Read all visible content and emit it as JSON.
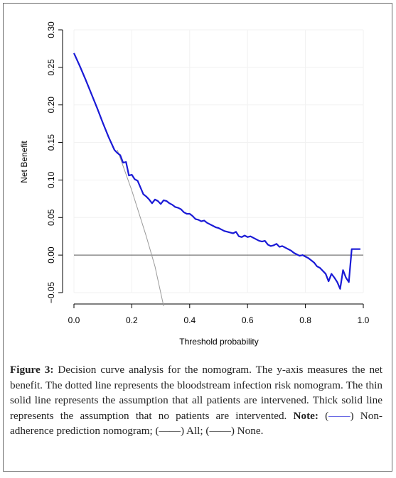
{
  "chart_data": {
    "type": "line",
    "xlabel": "Threshold probability",
    "ylabel": "Net Benefit",
    "xlim": [
      0.0,
      1.0
    ],
    "ylim": [
      -0.05,
      0.3
    ],
    "x_ticks": [
      "0.0",
      "0.2",
      "0.4",
      "0.6",
      "0.8",
      "1.0"
    ],
    "y_ticks": [
      "−0.05",
      "0.00",
      "0.05",
      "0.10",
      "0.15",
      "0.20",
      "0.25",
      "0.30"
    ],
    "grid": true,
    "series": [
      {
        "name": "Non-adherence prediction nomogram",
        "color": "#1a1ad6",
        "style": "thick",
        "x": [
          0.0,
          0.02,
          0.04,
          0.06,
          0.08,
          0.1,
          0.12,
          0.14,
          0.15,
          0.16,
          0.17,
          0.18,
          0.19,
          0.2,
          0.21,
          0.22,
          0.23,
          0.24,
          0.25,
          0.26,
          0.27,
          0.28,
          0.29,
          0.3,
          0.31,
          0.32,
          0.33,
          0.34,
          0.35,
          0.36,
          0.37,
          0.38,
          0.39,
          0.4,
          0.41,
          0.42,
          0.43,
          0.44,
          0.45,
          0.46,
          0.47,
          0.48,
          0.49,
          0.5,
          0.51,
          0.52,
          0.53,
          0.54,
          0.55,
          0.56,
          0.57,
          0.58,
          0.59,
          0.6,
          0.61,
          0.62,
          0.63,
          0.64,
          0.65,
          0.66,
          0.67,
          0.68,
          0.69,
          0.7,
          0.71,
          0.72,
          0.73,
          0.74,
          0.75,
          0.76,
          0.77,
          0.78,
          0.79,
          0.8,
          0.81,
          0.82,
          0.83,
          0.84,
          0.85,
          0.86,
          0.87,
          0.88,
          0.89,
          0.9,
          0.91,
          0.92,
          0.93,
          0.94,
          0.95,
          0.96,
          0.97,
          0.98,
          0.99
        ],
        "y": [
          0.269,
          0.252,
          0.234,
          0.215,
          0.196,
          0.176,
          0.157,
          0.14,
          0.136,
          0.133,
          0.123,
          0.124,
          0.106,
          0.107,
          0.101,
          0.099,
          0.09,
          0.081,
          0.078,
          0.074,
          0.069,
          0.074,
          0.072,
          0.068,
          0.073,
          0.072,
          0.069,
          0.067,
          0.064,
          0.063,
          0.061,
          0.057,
          0.055,
          0.055,
          0.052,
          0.048,
          0.047,
          0.045,
          0.046,
          0.043,
          0.041,
          0.039,
          0.037,
          0.036,
          0.034,
          0.032,
          0.031,
          0.03,
          0.029,
          0.031,
          0.025,
          0.024,
          0.026,
          0.024,
          0.025,
          0.023,
          0.021,
          0.019,
          0.018,
          0.019,
          0.014,
          0.012,
          0.013,
          0.015,
          0.011,
          0.012,
          0.01,
          0.008,
          0.006,
          0.003,
          0.001,
          -0.001,
          0.0,
          -0.002,
          -0.004,
          -0.007,
          -0.01,
          -0.015,
          -0.017,
          -0.021,
          -0.025,
          -0.035,
          -0.025,
          -0.03,
          -0.036,
          -0.045,
          -0.02,
          -0.03,
          -0.036,
          0.008,
          0.008,
          0.008,
          0.008
        ]
      },
      {
        "name": "All",
        "color": "#9a9a9a",
        "style": "thin",
        "x": [
          0.15,
          0.2,
          0.25,
          0.28,
          0.31
        ],
        "y": [
          0.14,
          0.086,
          0.025,
          -0.015,
          -0.068
        ]
      },
      {
        "name": "None",
        "color": "#555555",
        "style": "thin",
        "x": [
          0.0,
          1.0
        ],
        "y": [
          0.0,
          0.0
        ]
      }
    ]
  },
  "caption": {
    "figure_label": "Figure 3:",
    "text_1": " Decision curve analysis for the nomogram. The y-axis measures the net benefit. The dotted line represents the bloodstream infection risk nomogram. The thin solid line represents the assumption that all patients are intervened. Thick solid line represents the assumption that no patients are intervented. ",
    "note_label": "Note:",
    "legend_open": " (",
    "legend_line": "——",
    "text_2": ") Non-adherence prediction nomogram; (——) All; (——) None."
  }
}
